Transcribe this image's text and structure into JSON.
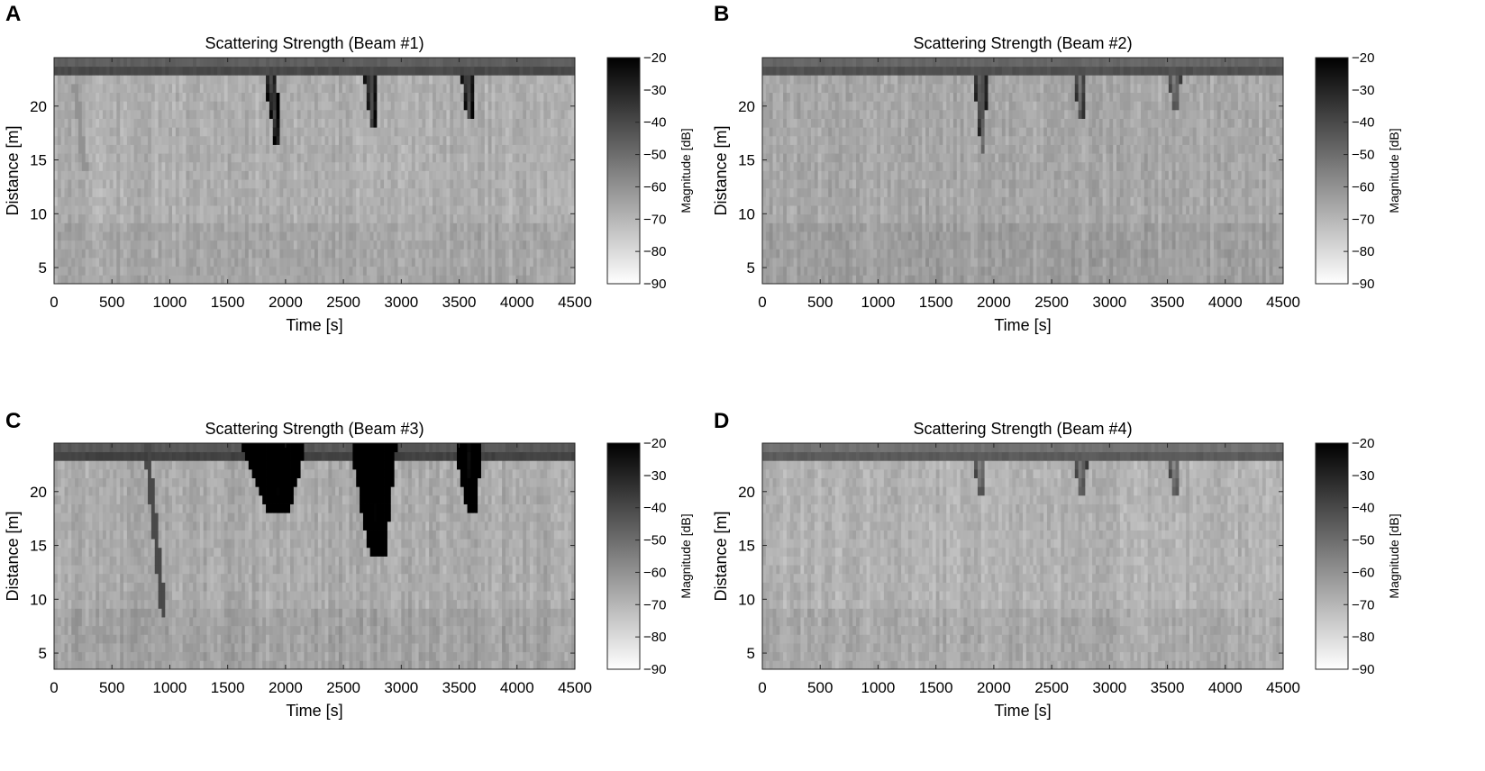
{
  "panels": [
    {
      "letter": "A"
    },
    {
      "letter": "B"
    },
    {
      "letter": "C"
    },
    {
      "letter": "D"
    }
  ],
  "chart_data": [
    {
      "type": "heatmap",
      "panel": "A",
      "title": "Scattering Strength (Beam #1)",
      "xlabel": "Time [s]",
      "ylabel": "Distance [m]",
      "xlim": [
        0,
        4500
      ],
      "ylim": [
        3.5,
        24.5
      ],
      "xticks": [
        0,
        500,
        1000,
        1500,
        2000,
        2500,
        3000,
        3500,
        4000,
        4500
      ],
      "yticks": [
        5,
        10,
        15,
        20
      ],
      "colorbar": {
        "label": "Magnitude [dB]",
        "range": [
          -90,
          -20
        ],
        "ticks": [
          -20,
          -30,
          -40,
          -50,
          -60,
          -70,
          -80,
          -90
        ],
        "colormap": "gray-reversed"
      },
      "background_level_db": -68,
      "surface_band": {
        "distance_from": 22.8,
        "distance_to": 24.5,
        "level_db": -40
      },
      "plumes": [
        {
          "time": 1870,
          "distance_top": 23,
          "distance_bottom": 16.5,
          "slope_s_per_m": 9,
          "peak_db": -40
        },
        {
          "time": 2730,
          "distance_top": 23,
          "distance_bottom": 18,
          "slope_s_per_m": 5,
          "peak_db": -42
        },
        {
          "time": 3570,
          "distance_top": 23,
          "distance_bottom": 18.5,
          "slope_s_per_m": 5,
          "peak_db": -42
        }
      ],
      "tracks": [
        {
          "time_top": 180,
          "distance_top": 22,
          "time_bottom": 270,
          "distance_bottom": 14,
          "level_db": -60
        }
      ]
    },
    {
      "type": "heatmap",
      "panel": "B",
      "title": "Scattering Strength (Beam #2)",
      "xlabel": "Time [s]",
      "ylabel": "Distance [m]",
      "xlim": [
        0,
        4500
      ],
      "ylim": [
        3.5,
        24.5
      ],
      "xticks": [
        0,
        500,
        1000,
        1500,
        2000,
        2500,
        3000,
        3500,
        4000,
        4500
      ],
      "yticks": [
        5,
        10,
        15,
        20
      ],
      "colorbar": {
        "label": "Magnitude [dB]",
        "range": [
          -90,
          -20
        ],
        "ticks": [
          -20,
          -30,
          -40,
          -50,
          -60,
          -70,
          -80,
          -90
        ],
        "colormap": "gray-reversed"
      },
      "background_level_db": -66,
      "surface_band": {
        "distance_from": 22.8,
        "distance_to": 24.5,
        "level_db": -42
      },
      "plumes": [
        {
          "time": 1880,
          "distance_top": 23,
          "distance_bottom": 16,
          "slope_s_per_m": 4,
          "peak_db": -50
        },
        {
          "time": 2740,
          "distance_top": 23,
          "distance_bottom": 19,
          "slope_s_per_m": 4,
          "peak_db": -52
        },
        {
          "time": 3560,
          "distance_top": 23,
          "distance_bottom": 19.5,
          "slope_s_per_m": 3,
          "peak_db": -56
        }
      ],
      "tracks": []
    },
    {
      "type": "heatmap",
      "panel": "C",
      "title": "Scattering Strength (Beam #3)",
      "xlabel": "Time [s]",
      "ylabel": "Distance [m]",
      "xlim": [
        0,
        4500
      ],
      "ylim": [
        3.5,
        24.5
      ],
      "xticks": [
        0,
        500,
        1000,
        1500,
        2000,
        2500,
        3000,
        3500,
        4000,
        4500
      ],
      "yticks": [
        5,
        10,
        15,
        20
      ],
      "colorbar": {
        "label": "Magnitude [dB]",
        "range": [
          -90,
          -20
        ],
        "ticks": [
          -20,
          -30,
          -40,
          -50,
          -60,
          -70,
          -80,
          -90
        ],
        "colormap": "gray-reversed"
      },
      "background_level_db": -67,
      "surface_band": {
        "distance_from": 22.8,
        "distance_to": 24.5,
        "level_db": -38
      },
      "plumes": [
        {
          "time": 1900,
          "distance_top": 24.5,
          "distance_bottom": 18,
          "slope_s_per_m": 6,
          "peak_db": -20,
          "width_s": 280
        },
        {
          "time": 2760,
          "distance_top": 24.5,
          "distance_bottom": 14,
          "slope_s_per_m": 3,
          "peak_db": -20,
          "width_s": 200
        },
        {
          "time": 3580,
          "distance_top": 24.5,
          "distance_bottom": 18,
          "slope_s_per_m": 4,
          "peak_db": -22,
          "width_s": 120
        }
      ],
      "tracks": [
        {
          "time_top": 800,
          "distance_top": 24.5,
          "time_bottom": 950,
          "distance_bottom": 8,
          "level_db": -40
        }
      ]
    },
    {
      "type": "heatmap",
      "panel": "D",
      "title": "Scattering Strength (Beam #4)",
      "xlabel": "Time [s]",
      "ylabel": "Distance [m]",
      "xlim": [
        0,
        4500
      ],
      "ylim": [
        3.5,
        24.5
      ],
      "xticks": [
        0,
        500,
        1000,
        1500,
        2000,
        2500,
        3000,
        3500,
        4000,
        4500
      ],
      "yticks": [
        5,
        10,
        15,
        20
      ],
      "colorbar": {
        "label": "Magnitude [dB]",
        "range": [
          -90,
          -20
        ],
        "ticks": [
          -20,
          -30,
          -40,
          -50,
          -60,
          -70,
          -80,
          -90
        ],
        "colormap": "gray-reversed"
      },
      "background_level_db": -69,
      "surface_band": {
        "distance_from": 22.8,
        "distance_to": 24.5,
        "level_db": -45
      },
      "plumes": [
        {
          "time": 1880,
          "distance_top": 23,
          "distance_bottom": 20,
          "slope_s_per_m": 3,
          "peak_db": -58
        },
        {
          "time": 2750,
          "distance_top": 23,
          "distance_bottom": 19.5,
          "slope_s_per_m": 3,
          "peak_db": -56
        },
        {
          "time": 3560,
          "distance_top": 23,
          "distance_bottom": 20,
          "slope_s_per_m": 3,
          "peak_db": -60
        }
      ],
      "tracks": []
    }
  ]
}
